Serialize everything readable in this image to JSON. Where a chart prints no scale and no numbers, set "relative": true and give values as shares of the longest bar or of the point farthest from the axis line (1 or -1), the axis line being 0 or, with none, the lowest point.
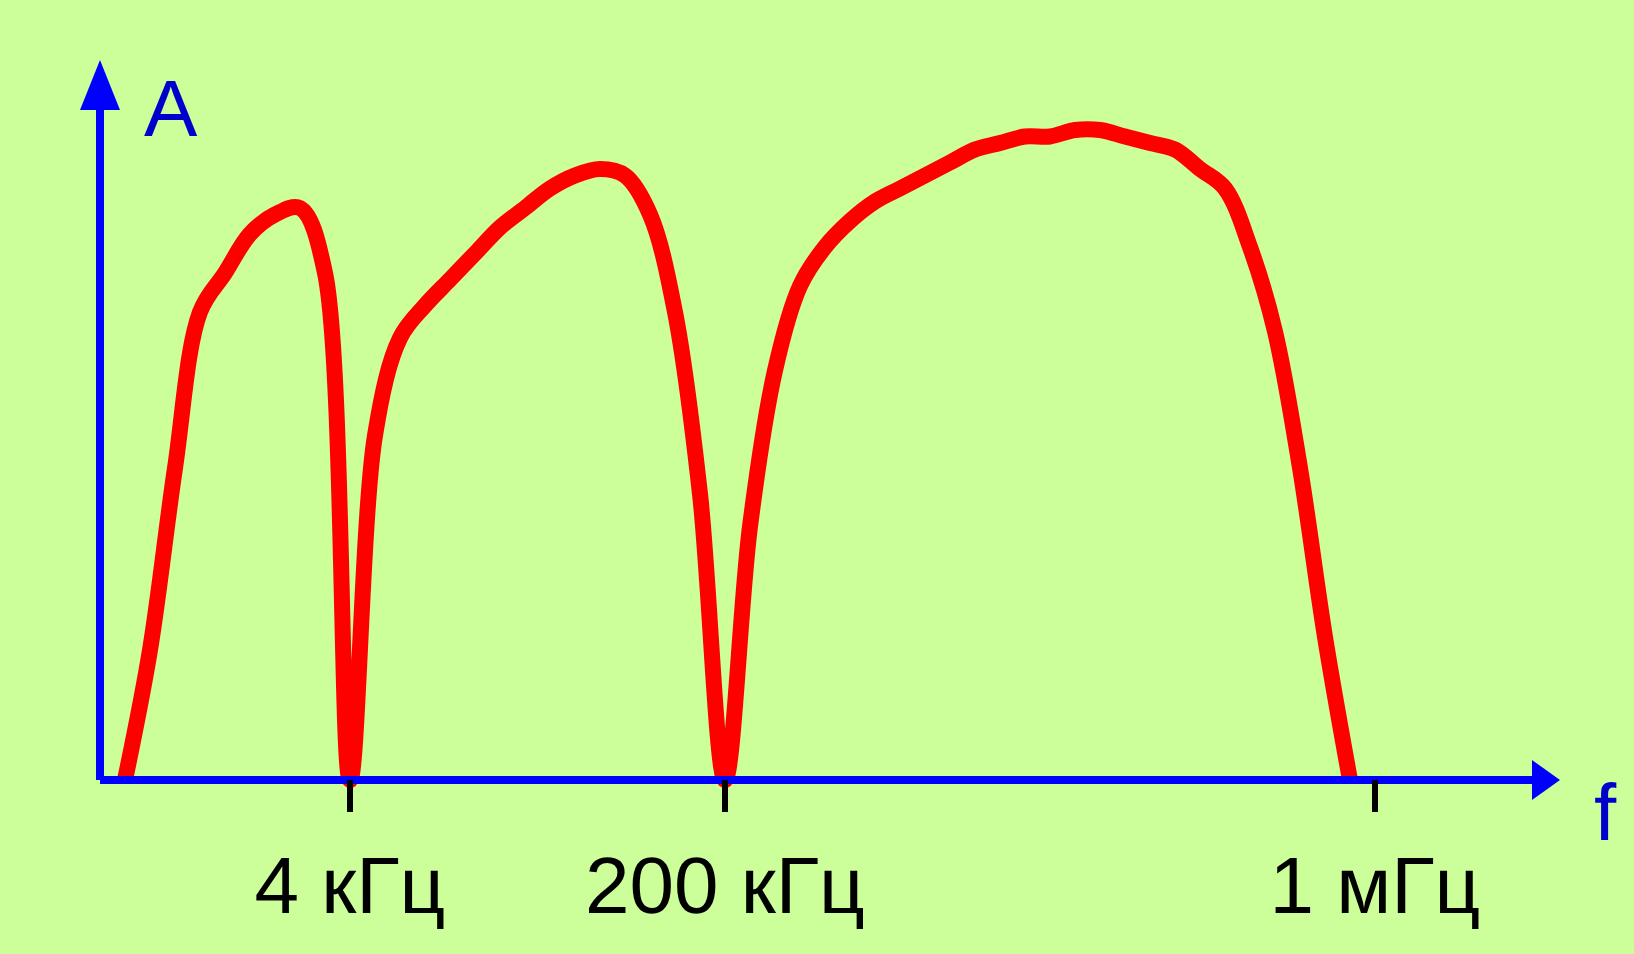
{
  "chart_data": {
    "type": "line",
    "relative": true,
    "xlabel": "f",
    "ylabel": "A",
    "categories": [
      null,
      null,
      null,
      null,
      null,
      null,
      null,
      null,
      null,
      null,
      "4 кГц",
      null,
      null,
      null,
      null,
      null,
      null,
      null,
      null,
      null,
      null,
      null,
      null,
      null,
      null,
      "200 кГц",
      null,
      null,
      null,
      null,
      null,
      null,
      null,
      null,
      null,
      null,
      null,
      null,
      null,
      null,
      null,
      null,
      null,
      null,
      null,
      null,
      null,
      null,
      null,
      null,
      null,
      "1 мГц",
      null,
      null,
      null,
      null,
      null,
      null,
      null
    ],
    "grid": false,
    "marker": "none",
    "line_style": "solid",
    "series": [
      {
        "color": "#ff0000",
        "values": [
          null,
          0,
          0.2,
          0.48,
          0.72,
          0.78,
          0.84,
          0.87,
          0.88,
          0.78,
          0,
          0.53,
          0.68,
          0.73,
          0.77,
          0.81,
          0.85,
          0.88,
          0.91,
          0.93,
          0.94,
          0.93,
          0.87,
          0.72,
          0.44,
          0,
          0.39,
          0.63,
          0.76,
          0.82,
          0.86,
          0.89,
          0.91,
          0.93,
          0.95,
          0.97,
          0.98,
          0.99,
          0.99,
          1,
          1,
          0.99,
          0.98,
          0.97,
          0.94,
          0.91,
          0.82,
          0.69,
          0.48,
          0.22,
          0,
          null,
          null,
          null,
          null,
          null,
          null,
          null,
          null
        ]
      }
    ]
  }
}
